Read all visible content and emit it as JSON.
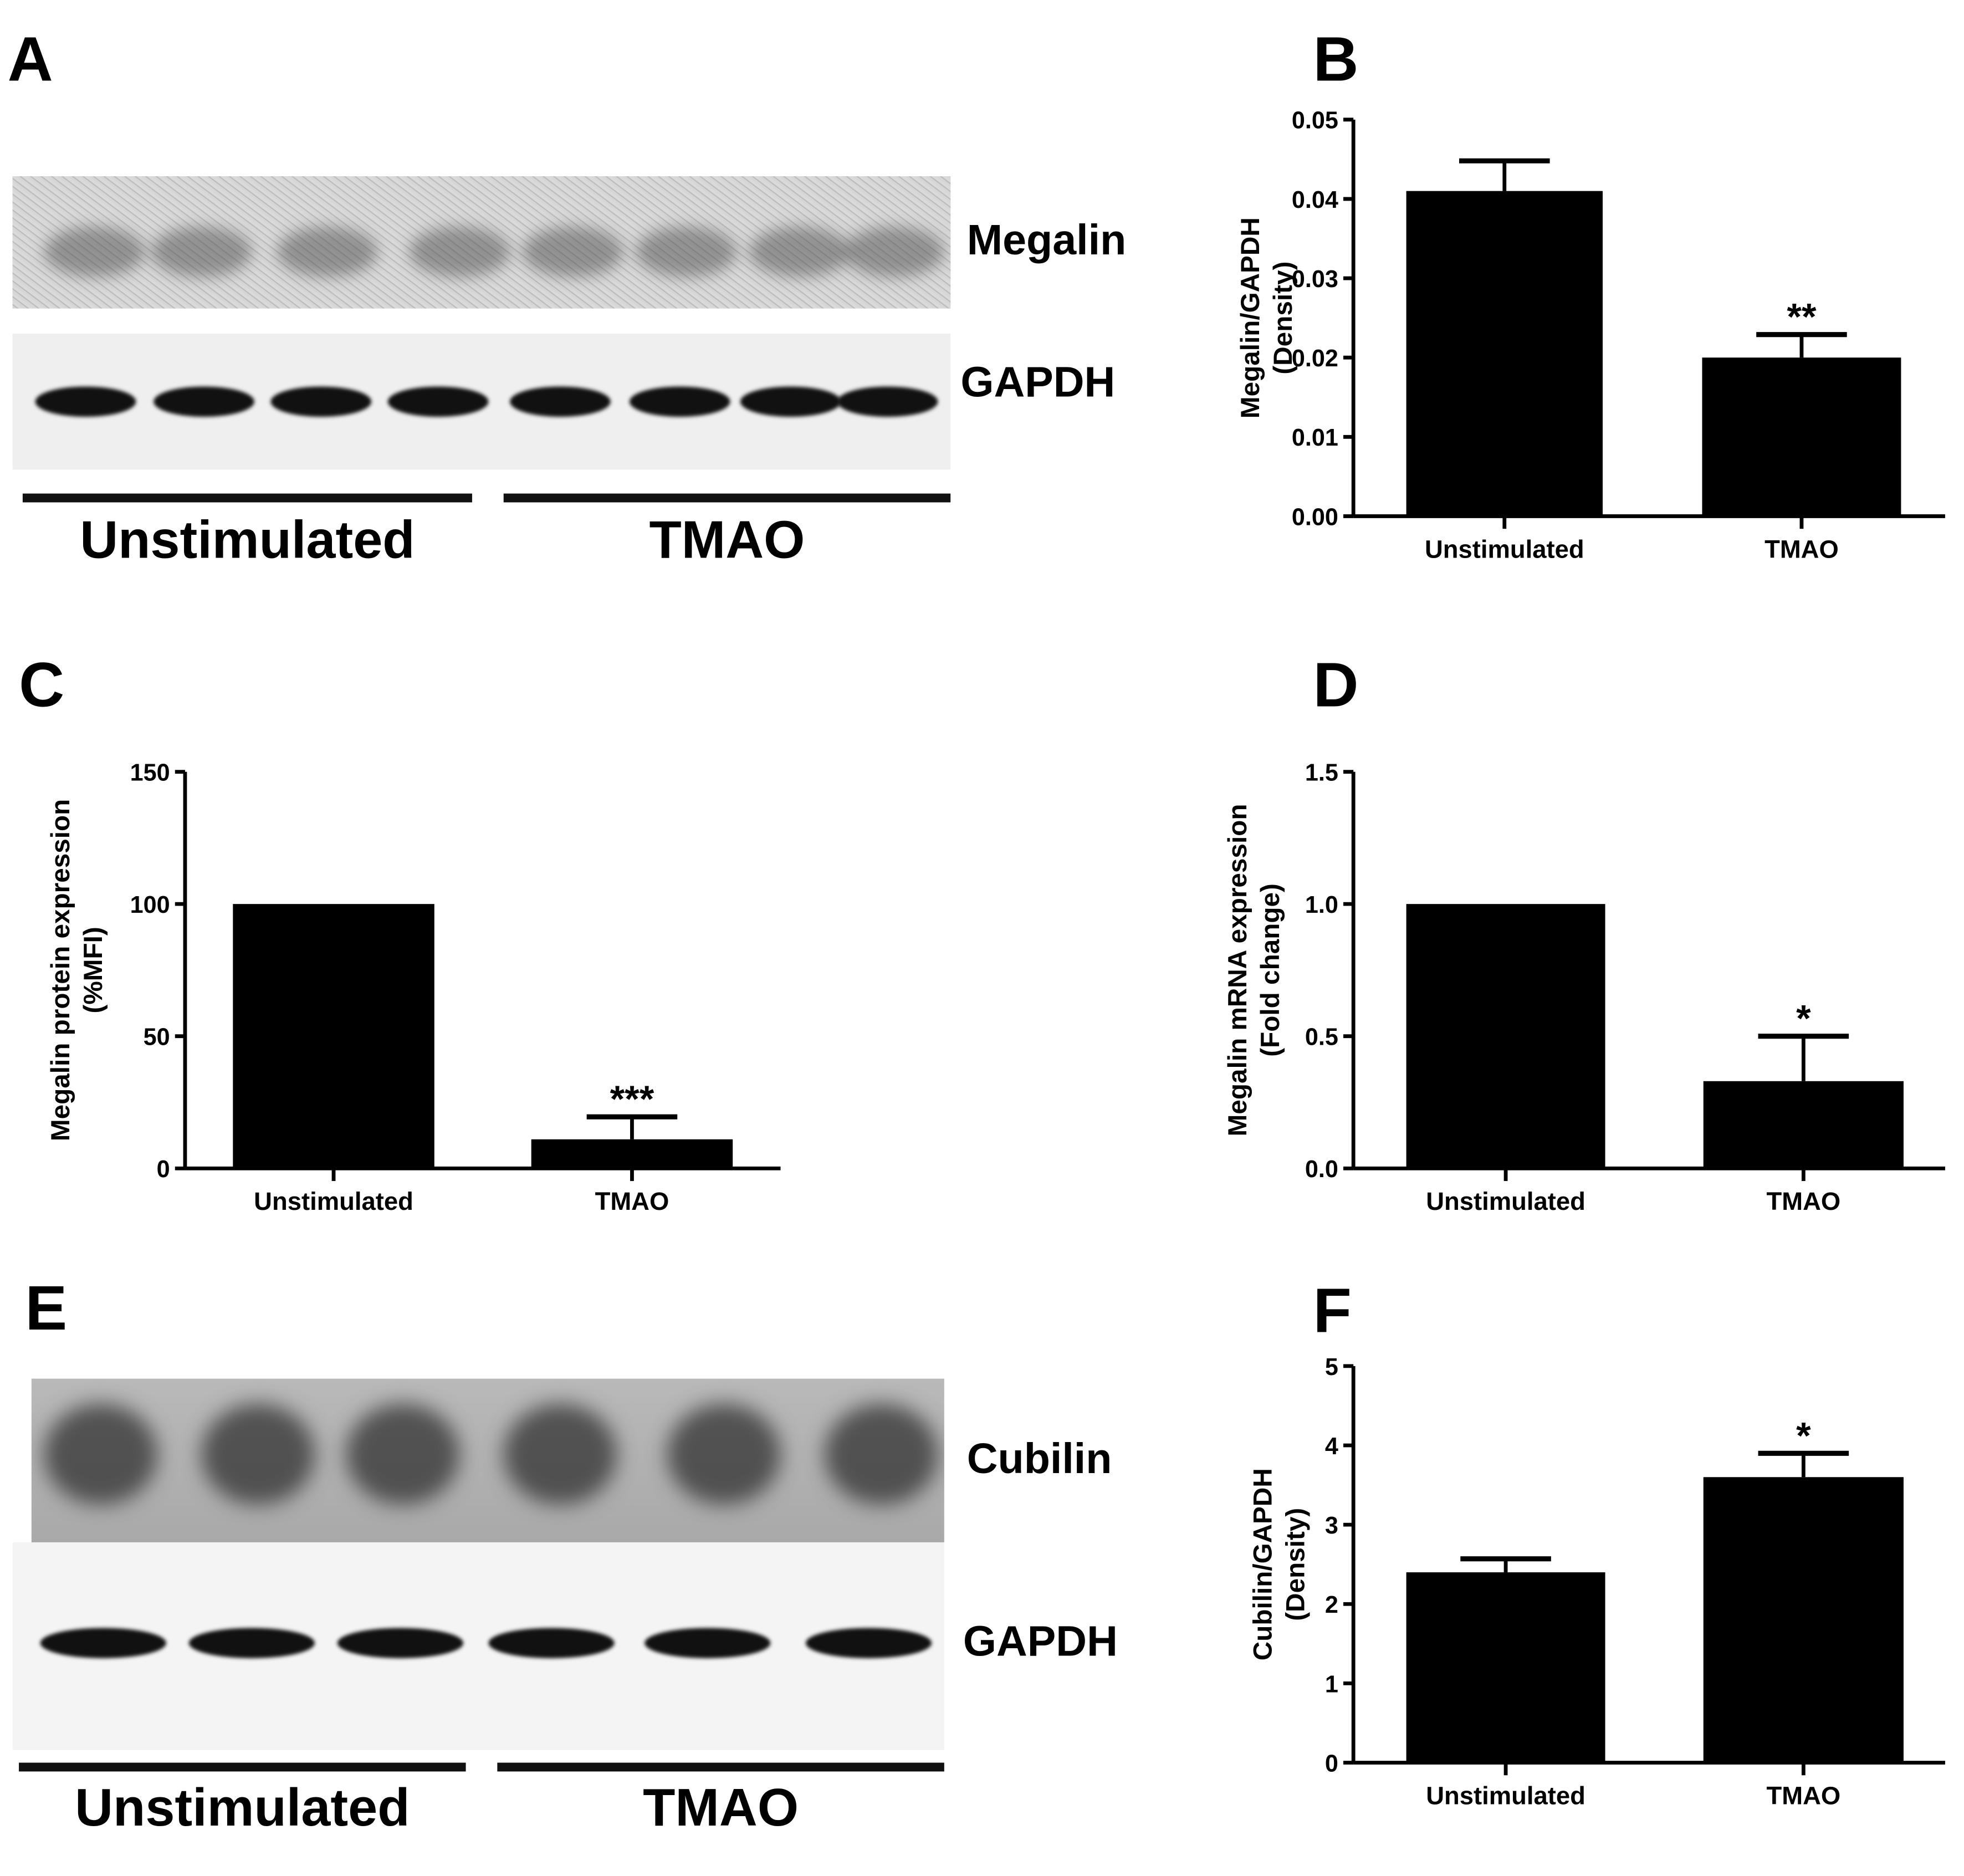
{
  "panels": {
    "A": {
      "letter": "A",
      "top_label": "Megalin",
      "bottom_label": "GAPDH",
      "group1": "Unstimulated",
      "group2": "TMAO"
    },
    "B": {
      "letter": "B"
    },
    "C": {
      "letter": "C"
    },
    "D": {
      "letter": "D"
    },
    "E": {
      "letter": "E",
      "top_label": "Cubilin",
      "bottom_label": "GAPDH",
      "group1": "Unstimulated",
      "group2": "TMAO"
    },
    "F": {
      "letter": "F"
    }
  },
  "chart_data": [
    {
      "panel": "B",
      "type": "bar",
      "categories": [
        "Unstimulated",
        "TMAO"
      ],
      "values": [
        0.041,
        0.02
      ],
      "errors": [
        0.0038,
        0.0029
      ],
      "significance": [
        "",
        "**"
      ],
      "ylabel": [
        "Megalin/GAPDH",
        "(Density)"
      ],
      "ylim": [
        0,
        0.05
      ],
      "yticks": [
        "0.00",
        "0.01",
        "0.02",
        "0.03",
        "0.04",
        "0.05"
      ],
      "grid": false,
      "bar_color": "#000000"
    },
    {
      "panel": "C",
      "type": "bar",
      "categories": [
        "Unstimulated",
        "TMAO"
      ],
      "values": [
        100,
        11
      ],
      "errors": [
        0,
        8.5
      ],
      "significance": [
        "",
        "***"
      ],
      "ylabel": [
        "Megalin protein expression",
        "(%MFI)"
      ],
      "ylim": [
        0,
        150
      ],
      "yticks": [
        "0",
        "50",
        "100",
        "150"
      ],
      "grid": false,
      "bar_color": "#000000"
    },
    {
      "panel": "D",
      "type": "bar",
      "categories": [
        "Unstimulated",
        "TMAO"
      ],
      "values": [
        1.0,
        0.33
      ],
      "errors": [
        0,
        0.17
      ],
      "significance": [
        "",
        "*"
      ],
      "ylabel": [
        "Megalin mRNA expression",
        "(Fold change)"
      ],
      "ylim": [
        0,
        1.5
      ],
      "yticks": [
        "0.0",
        "0.5",
        "1.0",
        "1.5"
      ],
      "grid": false,
      "bar_color": "#000000"
    },
    {
      "panel": "F",
      "type": "bar",
      "categories": [
        "Unstimulated",
        "TMAO"
      ],
      "values": [
        2.4,
        3.6
      ],
      "errors": [
        0.17,
        0.3
      ],
      "significance": [
        "",
        "*"
      ],
      "ylabel": [
        "Cubilin/GAPDH",
        "(Density)"
      ],
      "ylim": [
        0,
        5
      ],
      "yticks": [
        "0",
        "1",
        "2",
        "3",
        "4",
        "5"
      ],
      "grid": false,
      "bar_color": "#000000"
    }
  ]
}
